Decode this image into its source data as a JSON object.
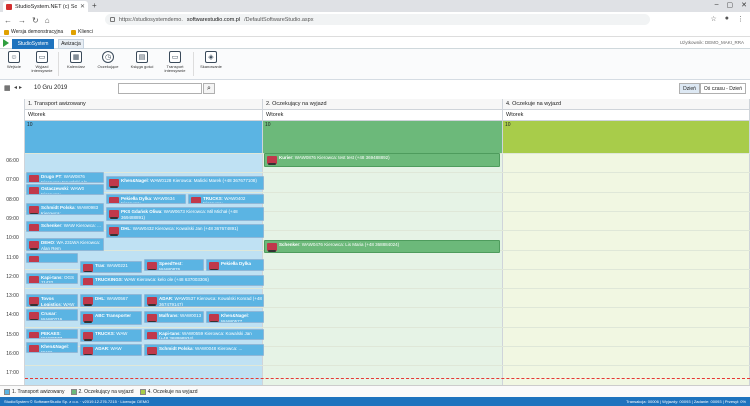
{
  "browser": {
    "tab_title": "StudioSystem.NET (c) Softwa...",
    "url_prefix": "https://studiosystemdemo.",
    "url_domain": "softwarestudio.com.pl",
    "url_path": "/DefaultSoftwareStudio.aspx",
    "bookmarks": [
      "Wersja demonstracyjna",
      "Klienci"
    ]
  },
  "app": {
    "primary_tab": "StudioSystem",
    "active_tab": "Awizacja",
    "user_info": "Użytkownik: DEMO_MAKI_RRA"
  },
  "ribbon": [
    {
      "label": "Wejście",
      "icon": "person-icon"
    },
    {
      "label": "Wyjazd intensywnie",
      "icon": "truck-icon"
    },
    {
      "label": "Kalendarz",
      "icon": "calendar-icon"
    },
    {
      "label": "Oczekujące",
      "icon": "clock-icon"
    },
    {
      "label": "Księga gości",
      "icon": "book-icon"
    },
    {
      "label": "Transport intensywnie",
      "icon": "truck-icon"
    },
    {
      "label": "Skanowanie",
      "icon": "scan-icon"
    }
  ],
  "toolbar": {
    "date": "10 Gru 2019",
    "view_day": "Dzień",
    "view_axis": "Oś czasu - Dzień"
  },
  "columns": [
    {
      "title": "1. Transport awizowany",
      "day": "Wtorek",
      "date": "10",
      "color": "#5bb4e3"
    },
    {
      "title": "2. Oczekujący na wyjazd",
      "day": "Wtorek",
      "date": "10",
      "color": "#6cb97a"
    },
    {
      "title": "4. Oczekuje na wyjazd",
      "day": "Wtorek",
      "date": "10",
      "color": "#a8cc4a"
    }
  ],
  "hours": [
    "06:00",
    "07:00",
    "08:00",
    "09:00",
    "10:00",
    "11:00",
    "12:00",
    "13:00",
    "14:00",
    "15:00",
    "16:00",
    "17:00"
  ],
  "events": [
    {
      "title": "Drugo PT",
      "detail": ": WAW0876 Kierowca: Kowalski Ala",
      "col": 0,
      "x": 0,
      "w": 78,
      "start": 7.0,
      "dur": 0.55
    },
    {
      "title": "Ostaczewski",
      "detail": ": WAW0 Kierowca: ...",
      "col": 0,
      "x": 0,
      "w": 78,
      "start": 7.6,
      "dur": 0.6
    },
    {
      "title": "Schmidt Polska",
      "detail": ": WAW0983 Kierowca: ...",
      "col": 0,
      "x": 0,
      "w": 78,
      "start": 8.6,
      "dur": 0.6
    },
    {
      "title": "Schenker",
      "detail": ": WAW Kierowca: ...",
      "col": 0,
      "x": 0,
      "w": 78,
      "start": 9.5,
      "dur": 0.6
    },
    {
      "title": "DEHO",
      "detail": ": WA 231WA Kierowca: Alan Rem",
      "col": 0,
      "x": 0,
      "w": 78,
      "start": 10.4,
      "dur": 0.7
    },
    {
      "title": "Khen&Nagel",
      "detail": ": WAW0128 Kierowca: Malicki Marek (+48 367677108)",
      "col": 0,
      "x": 80,
      "w": 158,
      "start": 7.2,
      "dur": 0.7
    },
    {
      "title": "Pekiełła Dylka",
      "detail": ": WAW0634 Kierowca: ...",
      "col": 0,
      "x": 80,
      "w": 80,
      "start": 8.1,
      "dur": 0.55
    },
    {
      "title": "TRUCKS",
      "detail": ": WAW0402 Kierowca: ...",
      "col": 0,
      "x": 162,
      "w": 76,
      "start": 8.1,
      "dur": 0.55
    },
    {
      "title": "PKS Gdańsk Oliwa",
      "detail": ": WAW0673 Kierowca: Mil Michał (+48 369488891)",
      "col": 0,
      "x": 80,
      "w": 158,
      "start": 8.8,
      "dur": 0.7
    },
    {
      "title": "DHL",
      "detail": ": WAW0432 Kierowca: Kowalski Jan (+48 367674891)",
      "col": 0,
      "x": 80,
      "w": 158,
      "start": 9.7,
      "dur": 0.7
    },
    {
      "title": "Kurier",
      "detail": ": WAW0876 Kierowca: test test (+48 369488892)",
      "col": 1,
      "x": 0,
      "w": 236,
      "start": 6.0,
      "dur": 0.7
    },
    {
      "title": "Schenker",
      "detail": ": WAW0476 Kierowca: Lis Maria (+48 368884024)",
      "col": 1,
      "x": 0,
      "w": 236,
      "start": 10.5,
      "dur": 0.7
    },
    {
      "title": "",
      "detail": "",
      "col": 0,
      "x": 0,
      "w": 52,
      "start": 11.2,
      "dur": 0.5
    },
    {
      "title": "Kapi-tans",
      "detail": ": OGS 11432",
      "col": 0,
      "x": 0,
      "w": 52,
      "start": 12.2,
      "dur": 0.6
    },
    {
      "title": "Tovos Logistics",
      "detail": ": WAW",
      "col": 0,
      "x": 0,
      "w": 52,
      "start": 13.3,
      "dur": 0.7
    },
    {
      "title": "Crusar",
      "detail": ": WAW0216",
      "col": 0,
      "x": 0,
      "w": 52,
      "start": 14.1,
      "dur": 0.6
    },
    {
      "title": "PEKAES",
      "detail": ": WAW0577",
      "col": 0,
      "x": 0,
      "w": 52,
      "start": 15.1,
      "dur": 0.55
    },
    {
      "title": "Khen&Nagel",
      "detail": ": WAW",
      "col": 0,
      "x": 0,
      "w": 52,
      "start": 15.8,
      "dur": 0.55
    },
    {
      "title": "Tras",
      "detail": ": WAW0221",
      "col": 0,
      "x": 54,
      "w": 62,
      "start": 11.6,
      "dur": 0.6
    },
    {
      "title": "SpeedTest",
      "detail": ": WAW0876",
      "col": 0,
      "x": 118,
      "w": 60,
      "start": 11.5,
      "dur": 0.6
    },
    {
      "title": "Pekiełła Dylka",
      "detail": "",
      "col": 0,
      "x": 180,
      "w": 58,
      "start": 11.5,
      "dur": 0.6
    },
    {
      "title": "TRUCKINGS",
      "detail": ": WAW Kierowca: kelo ole (+48 637003306)",
      "col": 0,
      "x": 54,
      "w": 184,
      "start": 12.3,
      "dur": 0.6
    },
    {
      "title": "DHL",
      "detail": ": WAW0567",
      "col": 0,
      "x": 54,
      "w": 62,
      "start": 13.3,
      "dur": 0.7
    },
    {
      "title": "ADAR",
      "detail": ": WAW0537 Kierowca: Kowalski Konrad (+48 367479147)",
      "col": 0,
      "x": 118,
      "w": 120,
      "start": 13.3,
      "dur": 0.7
    },
    {
      "title": "ABC Transporter",
      "detail": "",
      "col": 0,
      "x": 54,
      "w": 62,
      "start": 14.2,
      "dur": 0.7
    },
    {
      "title": "Malfrans",
      "detail": ": WAW0013",
      "col": 0,
      "x": 118,
      "w": 60,
      "start": 14.2,
      "dur": 0.6
    },
    {
      "title": "Khen&Nagel",
      "detail": ": WAW0577",
      "col": 0,
      "x": 180,
      "w": 58,
      "start": 14.2,
      "dur": 0.6
    },
    {
      "title": "TRUCKS",
      "detail": ": WAW",
      "col": 0,
      "x": 54,
      "w": 62,
      "start": 15.1,
      "dur": 0.7
    },
    {
      "title": "Kapi-tans",
      "detail": ": WAW0559 Kierowca: Kowalski Jan (+48 368998934)",
      "col": 0,
      "x": 118,
      "w": 120,
      "start": 15.1,
      "dur": 0.6
    },
    {
      "title": "ADAR",
      "detail": ": WAW",
      "col": 0,
      "x": 54,
      "w": 62,
      "start": 15.9,
      "dur": 0.6
    },
    {
      "title": "Schmidt Polska",
      "detail": ": WAW0048 Kierowca: ...",
      "col": 0,
      "x": 118,
      "w": 120,
      "start": 15.9,
      "dur": 0.6
    }
  ],
  "legend": [
    {
      "label": "1. Transport awizowany",
      "color": "#5bb4e3"
    },
    {
      "label": "2. Oczekujący na wyjazd",
      "color": "#6cb97a"
    },
    {
      "label": "4. Oczekuje na wyjazd",
      "color": "#a8cc4a"
    }
  ],
  "status": {
    "left": "StudioSystem © SoftwareStudio Sp. z o.o. · v2019.12.276.7215 · Licencja: DEMO",
    "right": "Transakcja: 00006 | Wyjazdy: 00093 | Zadanie: 00093 | Przesył: 0%"
  }
}
